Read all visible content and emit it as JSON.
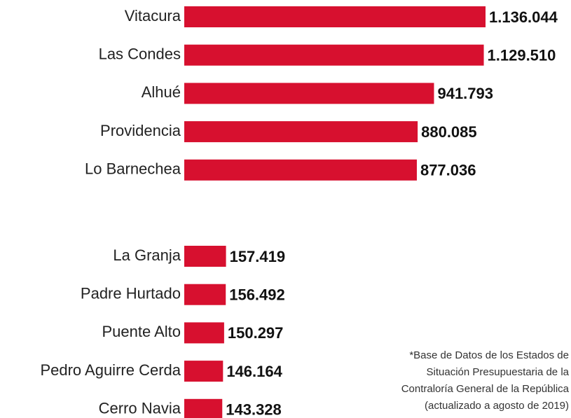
{
  "chart_data": [
    {
      "type": "hbar",
      "color": "#d7102f",
      "categories": [
        "Vitacura",
        "Las Condes",
        "Alhué",
        "Providencia",
        "Lo Barnechea"
      ],
      "values": [
        1136044,
        1129510,
        941793,
        880085,
        877036
      ],
      "value_labels": [
        "1.136.044",
        "1.129.510",
        "941.793",
        "880.085",
        "877.036"
      ]
    },
    {
      "type": "hbar",
      "color": "#d7102f",
      "categories": [
        "La Granja",
        "Padre Hurtado",
        "Puente Alto",
        "Pedro Aguirre Cerda",
        "Cerro Navia"
      ],
      "values": [
        157419,
        156492,
        150297,
        146164,
        143328
      ],
      "value_labels": [
        "157.419",
        "156.492",
        "150.297",
        "146.164",
        "143.328"
      ]
    }
  ],
  "note": [
    "*Base de Datos de los Estados de",
    "Situación Presupuestaria de la",
    "Contraloría General de la República",
    "(actualizado a agosto de 2019)"
  ]
}
